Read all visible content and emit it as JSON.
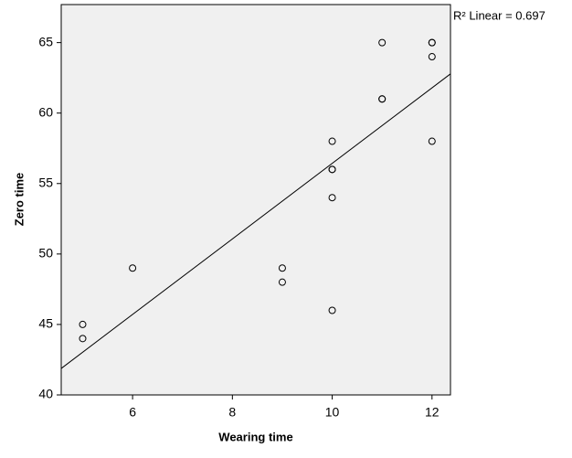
{
  "chart_data": {
    "type": "scatter",
    "x_label": "Wearing time",
    "y_label": "Zero time",
    "annotation": "R² Linear = 0.697",
    "x": [
      5,
      5,
      6,
      9,
      9,
      10,
      10,
      10,
      10,
      10,
      11,
      11,
      11,
      12,
      12,
      12,
      12
    ],
    "values": [
      45,
      44,
      49,
      49,
      48,
      46,
      54,
      56,
      56,
      58,
      65,
      61,
      61,
      65,
      65,
      64,
      58
    ],
    "fit": {
      "intercept": 29.63,
      "slope": 2.68
    },
    "xlim": [
      4.57,
      12.37
    ],
    "ylim": [
      40,
      67.7
    ],
    "xticks": [
      6,
      8,
      10,
      12
    ],
    "yticks": [
      40,
      45,
      50,
      55,
      60,
      65
    ],
    "color": "#000000",
    "plot_background": "#f0f0f0",
    "grid": false
  }
}
